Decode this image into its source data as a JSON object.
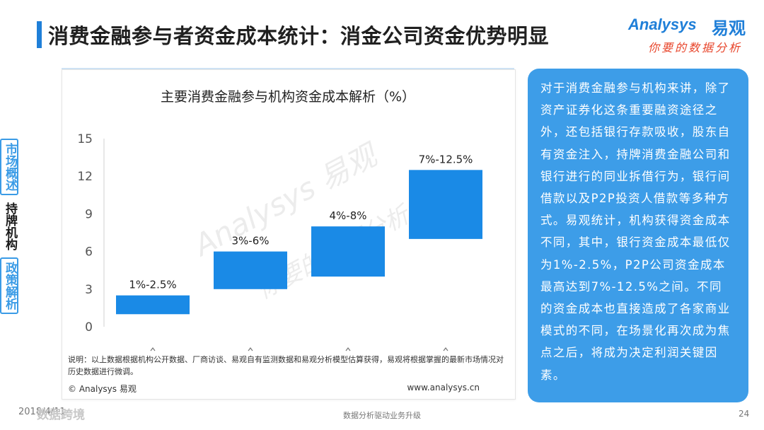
{
  "slide": {
    "title": "消费金融参与者资金成本统计：消金公司资金优势明显"
  },
  "logo": {
    "en": "Analysys",
    "cn": "易观",
    "slogan": "你要的数据分析"
  },
  "side_nav": [
    {
      "label": "市场概述",
      "state": "dim"
    },
    {
      "label": "持牌机构",
      "state": "active"
    },
    {
      "label": "政策解析",
      "state": "dim"
    }
  ],
  "chart_data": {
    "type": "bar",
    "title": "主要消费金融参与机构资金成本解析（%）",
    "ylim": [
      0,
      15
    ],
    "yticks": [
      0,
      3,
      6,
      9,
      12,
      15
    ],
    "categories": [
      "",
      "",
      "",
      ""
    ],
    "ranges": [
      {
        "low": 1,
        "high": 2.5,
        "label": "1%-2.5%"
      },
      {
        "low": 3,
        "high": 6,
        "label": "3%-6%"
      },
      {
        "low": 4,
        "high": 8,
        "label": "4%-8%"
      },
      {
        "low": 7,
        "high": 12.5,
        "label": "7%-12.5%"
      }
    ],
    "bar_color": "#1a8ae6"
  },
  "note": "说明：以上数据根据机构公开数据、厂商访谈、易观自有监测数据和易观分析模型估算获得，易观将根据掌握的最新市场情况对历史数据进行微调。",
  "footer": {
    "copyright": "© Analysys 易观",
    "url": "www.analysys.cn"
  },
  "panel_text": "对于消费金融参与机构来讲，除了资产证券化这条重要融资途径之外，还包括银行存款吸收，股东自有资金注入，持牌消费金融公司和银行进行的同业拆借行为，银行间借款以及P2P投资人借款等多种方式。易观统计，机构获得资金成本不同，其中，银行资金成本最低仅为1%-2.5%，P2P公司资金成本最高达到7%-12.5%之间。不同的资金成本也直接造成了各家商业模式的不同，在场景化再次成为焦点之后，将成为决定利润关键因素。",
  "bottom": {
    "date": "2018/4/11",
    "center": "数据分析驱动业务升级",
    "page": "24",
    "corner_mark": "数据跨境"
  },
  "watermark": {
    "line1": "Analysys 易观",
    "line2": "你要的数据分析"
  }
}
